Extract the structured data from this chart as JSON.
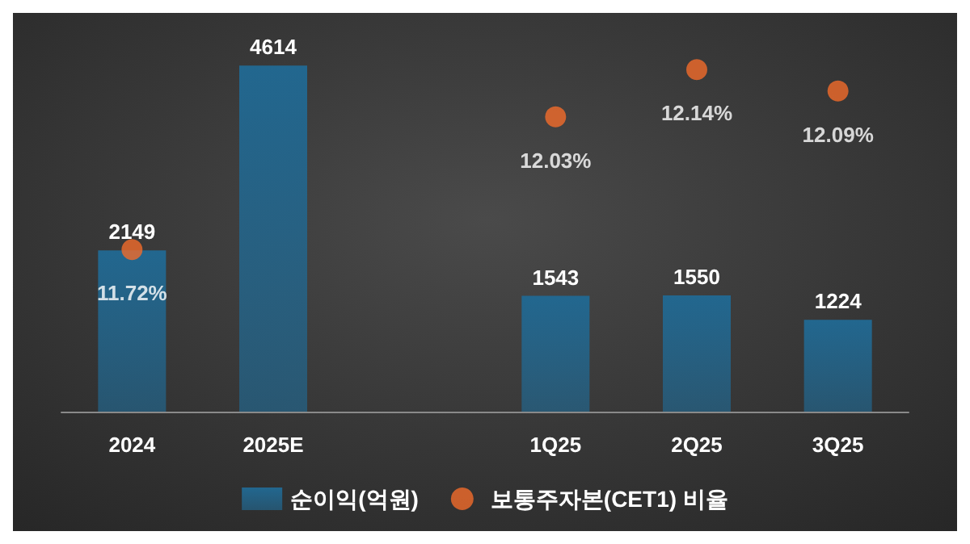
{
  "chart_data": {
    "type": "bar",
    "categories": [
      "2024",
      "2025E",
      null,
      "1Q25",
      "2Q25",
      "3Q25"
    ],
    "series": [
      {
        "name": "순이익(억원)",
        "color": "#22678f",
        "values": [
          2149,
          4614,
          null,
          1543,
          1550,
          1224
        ]
      },
      {
        "name": "보통주자본(CET1) 비율",
        "type": "scatter",
        "axis": "y2",
        "color": "#f26b2a",
        "values": [
          11.72,
          null,
          null,
          12.03,
          12.14,
          12.09
        ],
        "value_labels": [
          "11.72%",
          null,
          null,
          "12.03%",
          "12.14%",
          "12.09%"
        ]
      }
    ],
    "tick_labels": "x",
    "data_labels": true,
    "grid": false,
    "legend": "bottom"
  }
}
